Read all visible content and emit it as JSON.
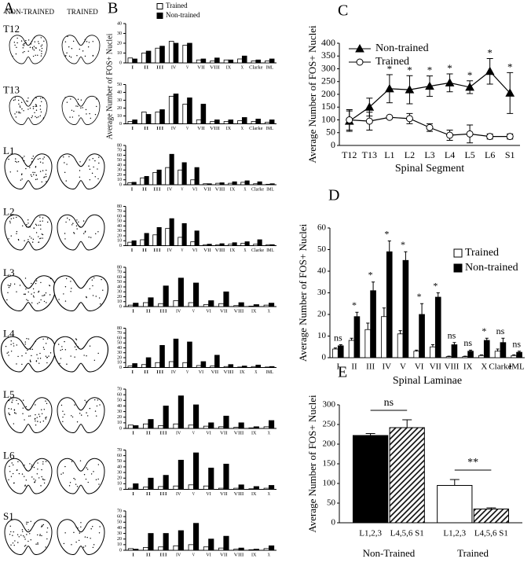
{
  "panel_a": {
    "label": "A",
    "columns": [
      "NON-TRAINED",
      "TRAINED"
    ],
    "segments": [
      "T12",
      "T13",
      "L1",
      "L2",
      "L3",
      "L4",
      "L5",
      "L6",
      "S1"
    ]
  },
  "chart_data": [
    {
      "type": "bar",
      "panel_label": "B",
      "y_label": "Average Number of FOS+ Nuclei",
      "categories": [
        "I",
        "II",
        "III",
        "IV",
        "V",
        "VII",
        "VIII",
        "IX",
        "X",
        "Clarke",
        "IML"
      ],
      "series": [
        {
          "name": "Trained",
          "color": "#ffffff",
          "values": [
            5,
            10,
            15,
            22,
            18,
            3,
            2,
            3,
            4,
            2,
            2
          ]
        },
        {
          "name": "Non-trained",
          "color": "#000000",
          "values": [
            4,
            12,
            17,
            20,
            20,
            4,
            5,
            3,
            7,
            3,
            4
          ]
        }
      ],
      "ylim": [
        0,
        40
      ],
      "yticks": [
        0,
        10,
        20,
        30,
        40
      ]
    },
    {
      "type": "bar",
      "categories": [
        "I",
        "II",
        "III",
        "IV",
        "V",
        "VII",
        "VIII",
        "IX",
        "X",
        "Clarke",
        "IML"
      ],
      "series": [
        {
          "color": "#ffffff",
          "values": [
            3,
            15,
            15,
            35,
            25,
            5,
            3,
            3,
            4,
            3,
            2
          ]
        },
        {
          "color": "#000000",
          "values": [
            5,
            12,
            18,
            38,
            33,
            25,
            5,
            5,
            8,
            6,
            5
          ]
        }
      ],
      "ylim": [
        0,
        50
      ],
      "yticks": [
        0,
        10,
        20,
        30,
        40,
        50
      ]
    },
    {
      "type": "bar",
      "categories": [
        "I",
        "II",
        "III",
        "IV",
        "V",
        "VI",
        "VII",
        "VIII",
        "IX",
        "X",
        "Clarke",
        "IML"
      ],
      "series": [
        {
          "color": "#ffffff",
          "values": [
            4,
            14,
            25,
            35,
            30,
            10,
            2,
            3,
            3,
            5,
            2,
            1
          ]
        },
        {
          "color": "#000000",
          "values": [
            5,
            17,
            30,
            62,
            45,
            35,
            2,
            4,
            6,
            8,
            6,
            2
          ]
        }
      ],
      "ylim": [
        0,
        80
      ],
      "yticks": [
        0,
        10,
        20,
        30,
        40,
        50,
        60,
        70,
        80
      ]
    },
    {
      "type": "bar",
      "categories": [
        "I",
        "II",
        "III",
        "IV",
        "V",
        "VI",
        "VII",
        "VIII",
        "IX",
        "X",
        "Clarke",
        "IML"
      ],
      "series": [
        {
          "color": "#ffffff",
          "values": [
            7,
            12,
            22,
            35,
            17,
            8,
            2,
            2,
            3,
            5,
            3,
            2
          ]
        },
        {
          "color": "#000000",
          "values": [
            10,
            25,
            37,
            55,
            45,
            30,
            3,
            4,
            6,
            8,
            12,
            2
          ]
        }
      ],
      "ylim": [
        0,
        80
      ],
      "yticks": [
        0,
        10,
        20,
        30,
        40,
        50,
        60,
        70,
        80
      ]
    },
    {
      "type": "bar",
      "categories": [
        "I",
        "II",
        "III",
        "IV",
        "V",
        "VI",
        "VII",
        "VIII",
        "IX",
        "X"
      ],
      "series": [
        {
          "color": "#ffffff",
          "values": [
            3,
            8,
            6,
            12,
            8,
            4,
            6,
            2,
            1,
            3
          ]
        },
        {
          "color": "#000000",
          "values": [
            7,
            18,
            42,
            58,
            48,
            12,
            30,
            8,
            4,
            7
          ]
        }
      ],
      "ylim": [
        0,
        80
      ],
      "yticks": [
        0,
        10,
        20,
        30,
        40,
        50,
        60,
        70,
        80
      ]
    },
    {
      "type": "bar",
      "categories": [
        "I",
        "II",
        "III",
        "IV",
        "V",
        "VI",
        "VII",
        "VIII",
        "IX",
        "X",
        "IML"
      ],
      "series": [
        {
          "color": "#ffffff",
          "values": [
            3,
            6,
            10,
            12,
            10,
            4,
            3,
            2,
            1,
            2,
            1
          ]
        },
        {
          "color": "#000000",
          "values": [
            8,
            20,
            45,
            58,
            52,
            12,
            25,
            6,
            3,
            5,
            2
          ]
        }
      ],
      "ylim": [
        0,
        80
      ],
      "yticks": [
        0,
        10,
        20,
        30,
        40,
        50,
        60,
        70,
        80
      ]
    },
    {
      "type": "bar",
      "categories": [
        "I",
        "II",
        "III",
        "IV",
        "V",
        "VI",
        "VII",
        "VIII",
        "IX",
        "X"
      ],
      "series": [
        {
          "color": "#ffffff",
          "values": [
            6,
            8,
            5,
            8,
            6,
            4,
            3,
            2,
            1,
            3
          ]
        },
        {
          "color": "#000000",
          "values": [
            5,
            16,
            40,
            58,
            42,
            10,
            22,
            10,
            3,
            14
          ]
        }
      ],
      "ylim": [
        0,
        70
      ],
      "yticks": [
        0,
        10,
        20,
        30,
        40,
        50,
        60,
        70
      ]
    },
    {
      "type": "bar",
      "categories": [
        "I",
        "II",
        "III",
        "IV",
        "V",
        "VI",
        "VII",
        "VIII",
        "IX",
        "X"
      ],
      "series": [
        {
          "color": "#ffffff",
          "values": [
            2,
            4,
            5,
            6,
            8,
            6,
            2,
            2,
            1,
            2
          ]
        },
        {
          "color": "#000000",
          "values": [
            10,
            20,
            25,
            52,
            65,
            38,
            45,
            8,
            5,
            7
          ]
        }
      ],
      "ylim": [
        0,
        70
      ],
      "yticks": [
        0,
        10,
        20,
        30,
        40,
        50,
        60,
        70
      ]
    },
    {
      "type": "bar",
      "categories": [
        "I",
        "II",
        "III",
        "IV",
        "V",
        "VI",
        "VII",
        "VIII",
        "IX",
        "X"
      ],
      "series": [
        {
          "color": "#ffffff",
          "values": [
            3,
            5,
            6,
            8,
            10,
            6,
            4,
            2,
            1,
            3
          ]
        },
        {
          "color": "#000000",
          "values": [
            2,
            30,
            30,
            35,
            48,
            20,
            25,
            4,
            2,
            8
          ]
        }
      ],
      "ylim": [
        0,
        70
      ],
      "yticks": [
        0,
        10,
        20,
        30,
        40,
        50,
        60,
        70
      ]
    },
    {
      "type": "line",
      "panel_label": "C",
      "y_label": "Average Number of FOS+ Nuclei",
      "x_label": "Spinal Segment",
      "categories": [
        "T12",
        "T13",
        "L1",
        "L2",
        "L3",
        "L4",
        "L5",
        "L6",
        "S1"
      ],
      "series": [
        {
          "name": "Non-trained",
          "color": "#000000",
          "marker": "triangle",
          "values": [
            95,
            150,
            222,
            218,
            232,
            245,
            228,
            290,
            205
          ],
          "errors": [
            40,
            35,
            55,
            55,
            40,
            35,
            25,
            50,
            80
          ]
        },
        {
          "name": "Trained",
          "color": "#ffffff",
          "marker": "circle",
          "values": [
            100,
            95,
            110,
            105,
            70,
            40,
            45,
            35,
            35
          ],
          "errors": [
            40,
            35,
            5,
            20,
            15,
            20,
            35,
            10,
            10
          ]
        }
      ],
      "significance": [
        null,
        null,
        "*",
        "*",
        "*",
        "*",
        "*",
        "*",
        "*"
      ],
      "ylim": [
        0,
        400
      ],
      "yticks": [
        0,
        50,
        100,
        150,
        200,
        250,
        300,
        350,
        400
      ]
    },
    {
      "type": "bar",
      "panel_label": "D",
      "y_label": "Average Number of FOS+ Nuclei",
      "x_label": "Spinal Laminae",
      "categories": [
        "I",
        "II",
        "III",
        "IV",
        "V",
        "VI",
        "VII",
        "VIII",
        "IX",
        "X",
        "Clarke",
        "IML"
      ],
      "series": [
        {
          "name": "Trained",
          "color": "#ffffff",
          "values": [
            4,
            8,
            13,
            19,
            11,
            3,
            5,
            0.5,
            0.5,
            1,
            3,
            1
          ],
          "errors": [
            0.5,
            1,
            3,
            4,
            1.5,
            0.5,
            1,
            0.2,
            0.2,
            0.3,
            1,
            0.3
          ]
        },
        {
          "name": "Non-trained",
          "color": "#000000",
          "values": [
            5.5,
            19,
            31,
            49,
            45,
            20,
            28,
            6,
            3,
            8,
            7,
            2.5
          ],
          "errors": [
            0.5,
            2,
            4,
            5,
            4,
            5,
            2,
            1,
            0.5,
            1,
            2,
            0.5
          ]
        }
      ],
      "significance": [
        "ns",
        "*",
        "*",
        "*",
        "*",
        "*",
        "*",
        "ns",
        "ns",
        "*",
        "ns",
        "ns"
      ],
      "ylim": [
        0,
        60
      ],
      "yticks": [
        0,
        10,
        20,
        30,
        40,
        50,
        60
      ]
    },
    {
      "type": "bar",
      "panel_label": "E",
      "y_label": "Average Number of FOS+ Nuclei",
      "categories": [
        "L1,2,3",
        "L4,5,6 S1",
        "L1,2,3",
        "L4,5,6 S1"
      ],
      "values": [
        222,
        242,
        95,
        35
      ],
      "errors": [
        5,
        20,
        15,
        3
      ],
      "fills": [
        "#000000",
        "hatch",
        "#ffffff",
        "hatch"
      ],
      "groups": [
        {
          "label": "Non-Trained",
          "annotation": "ns"
        },
        {
          "label": "Trained",
          "annotation": "**"
        }
      ],
      "ylim": [
        0,
        300
      ],
      "yticks": [
        0,
        50,
        100,
        150,
        200,
        250,
        300
      ]
    }
  ]
}
